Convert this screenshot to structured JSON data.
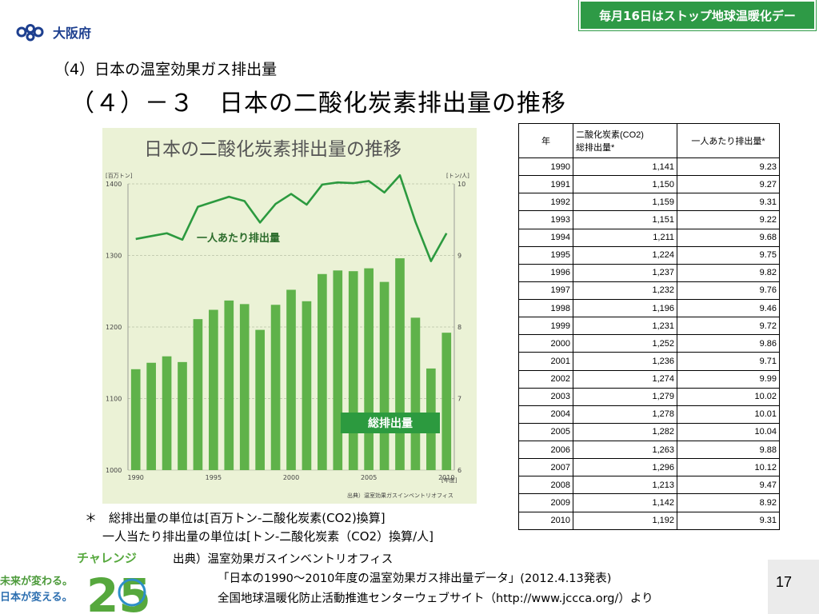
{
  "header": {
    "logo_text": "大阪府",
    "banner_text": "毎月16日はストップ地球温暖化デー",
    "colors": {
      "banner": "#2e9a46",
      "logo": "#1d3f8f"
    }
  },
  "slide": {
    "subheading": "（4）日本の温室効果ガス排出量",
    "heading": "（４）－３　日本の二酸化炭素排出量の推移"
  },
  "chart_data": {
    "type": "bar+line",
    "title": "日本の二酸化炭素排出量の推移",
    "categories": [
      "1990",
      "1991",
      "1992",
      "1993",
      "1994",
      "1995",
      "1996",
      "1997",
      "1998",
      "1999",
      "2000",
      "2001",
      "2002",
      "2003",
      "2004",
      "2005",
      "2006",
      "2007",
      "2008",
      "2009",
      "2010"
    ],
    "x_tick_labels": [
      "1990",
      "1995",
      "2000",
      "2005",
      "2010"
    ],
    "x_unit": "[年度]",
    "y_left_unit": "[百万トン]",
    "y_left_ticks": [
      "1400",
      "1300",
      "1200",
      "1100",
      "1000"
    ],
    "y_left_range": [
      1000,
      1400
    ],
    "y_right_unit": "[トン/人]",
    "y_right_ticks": [
      "10",
      "9",
      "8",
      "7",
      "6"
    ],
    "y_right_range": [
      6,
      10
    ],
    "series": [
      {
        "name": "総排出量",
        "type": "bar",
        "axis": "left",
        "color": "#5fb24a",
        "values": [
          1141,
          1150,
          1159,
          1151,
          1211,
          1224,
          1237,
          1232,
          1196,
          1231,
          1252,
          1236,
          1274,
          1279,
          1278,
          1282,
          1263,
          1296,
          1213,
          1142,
          1192
        ]
      },
      {
        "name": "一人あたり排出量",
        "type": "line",
        "axis": "right",
        "color": "#2c9a3f",
        "values": [
          9.23,
          9.27,
          9.31,
          9.22,
          9.68,
          9.75,
          9.82,
          9.76,
          9.46,
          9.72,
          9.86,
          9.71,
          9.99,
          10.02,
          10.01,
          10.04,
          9.88,
          10.12,
          9.47,
          8.92,
          9.31
        ]
      }
    ],
    "source_note": "出典）温室効果ガスインベントリオフィス",
    "grid": true
  },
  "table": {
    "headers": {
      "year": "年",
      "total_line1": "二酸化炭素(CO2)",
      "total_line2": "総排出量*",
      "per_capita": "一人あたり排出量*"
    },
    "rows": [
      {
        "year": "1990",
        "total": "1,141",
        "per": "9.23"
      },
      {
        "year": "1991",
        "total": "1,150",
        "per": "9.27"
      },
      {
        "year": "1992",
        "total": "1,159",
        "per": "9.31"
      },
      {
        "year": "1993",
        "total": "1,151",
        "per": "9.22"
      },
      {
        "year": "1994",
        "total": "1,211",
        "per": "9.68"
      },
      {
        "year": "1995",
        "total": "1,224",
        "per": "9.75"
      },
      {
        "year": "1996",
        "total": "1,237",
        "per": "9.82"
      },
      {
        "year": "1997",
        "total": "1,232",
        "per": "9.76"
      },
      {
        "year": "1998",
        "total": "1,196",
        "per": "9.46"
      },
      {
        "year": "1999",
        "total": "1,231",
        "per": "9.72"
      },
      {
        "year": "2000",
        "total": "1,252",
        "per": "9.86"
      },
      {
        "year": "2001",
        "total": "1,236",
        "per": "9.71"
      },
      {
        "year": "2002",
        "total": "1,274",
        "per": "9.99"
      },
      {
        "year": "2003",
        "total": "1,279",
        "per": "10.02"
      },
      {
        "year": "2004",
        "total": "1,278",
        "per": "10.01"
      },
      {
        "year": "2005",
        "total": "1,282",
        "per": "10.04"
      },
      {
        "year": "2006",
        "total": "1,263",
        "per": "9.88"
      },
      {
        "year": "2007",
        "total": "1,296",
        "per": "10.12"
      },
      {
        "year": "2008",
        "total": "1,213",
        "per": "9.47"
      },
      {
        "year": "2009",
        "total": "1,142",
        "per": "8.92"
      },
      {
        "year": "2010",
        "total": "1,192",
        "per": "9.31"
      }
    ]
  },
  "notes": {
    "line1": "＊　総排出量の単位は[百万トン-二酸化炭素(CO2)換算]",
    "line2": "一人当たり排出量の単位は[トン-二酸化炭素（CO2）換算/人]"
  },
  "footer": {
    "challenge_line1": "未来が変わる。",
    "challenge_line2": "日本が変える。",
    "challenge_title": "チャレンジ",
    "challenge_number": "25",
    "source_label": "出典）温室効果ガスインベントリオフィス",
    "source_line1": "「日本の1990～2010年度の温室効果ガス排出量データ」(2012.4.13発表)",
    "source_line2": "全国地球温暖化防止活動推進センターウェブサイト（http://www.jccca.org/）より",
    "page_number": "17"
  }
}
